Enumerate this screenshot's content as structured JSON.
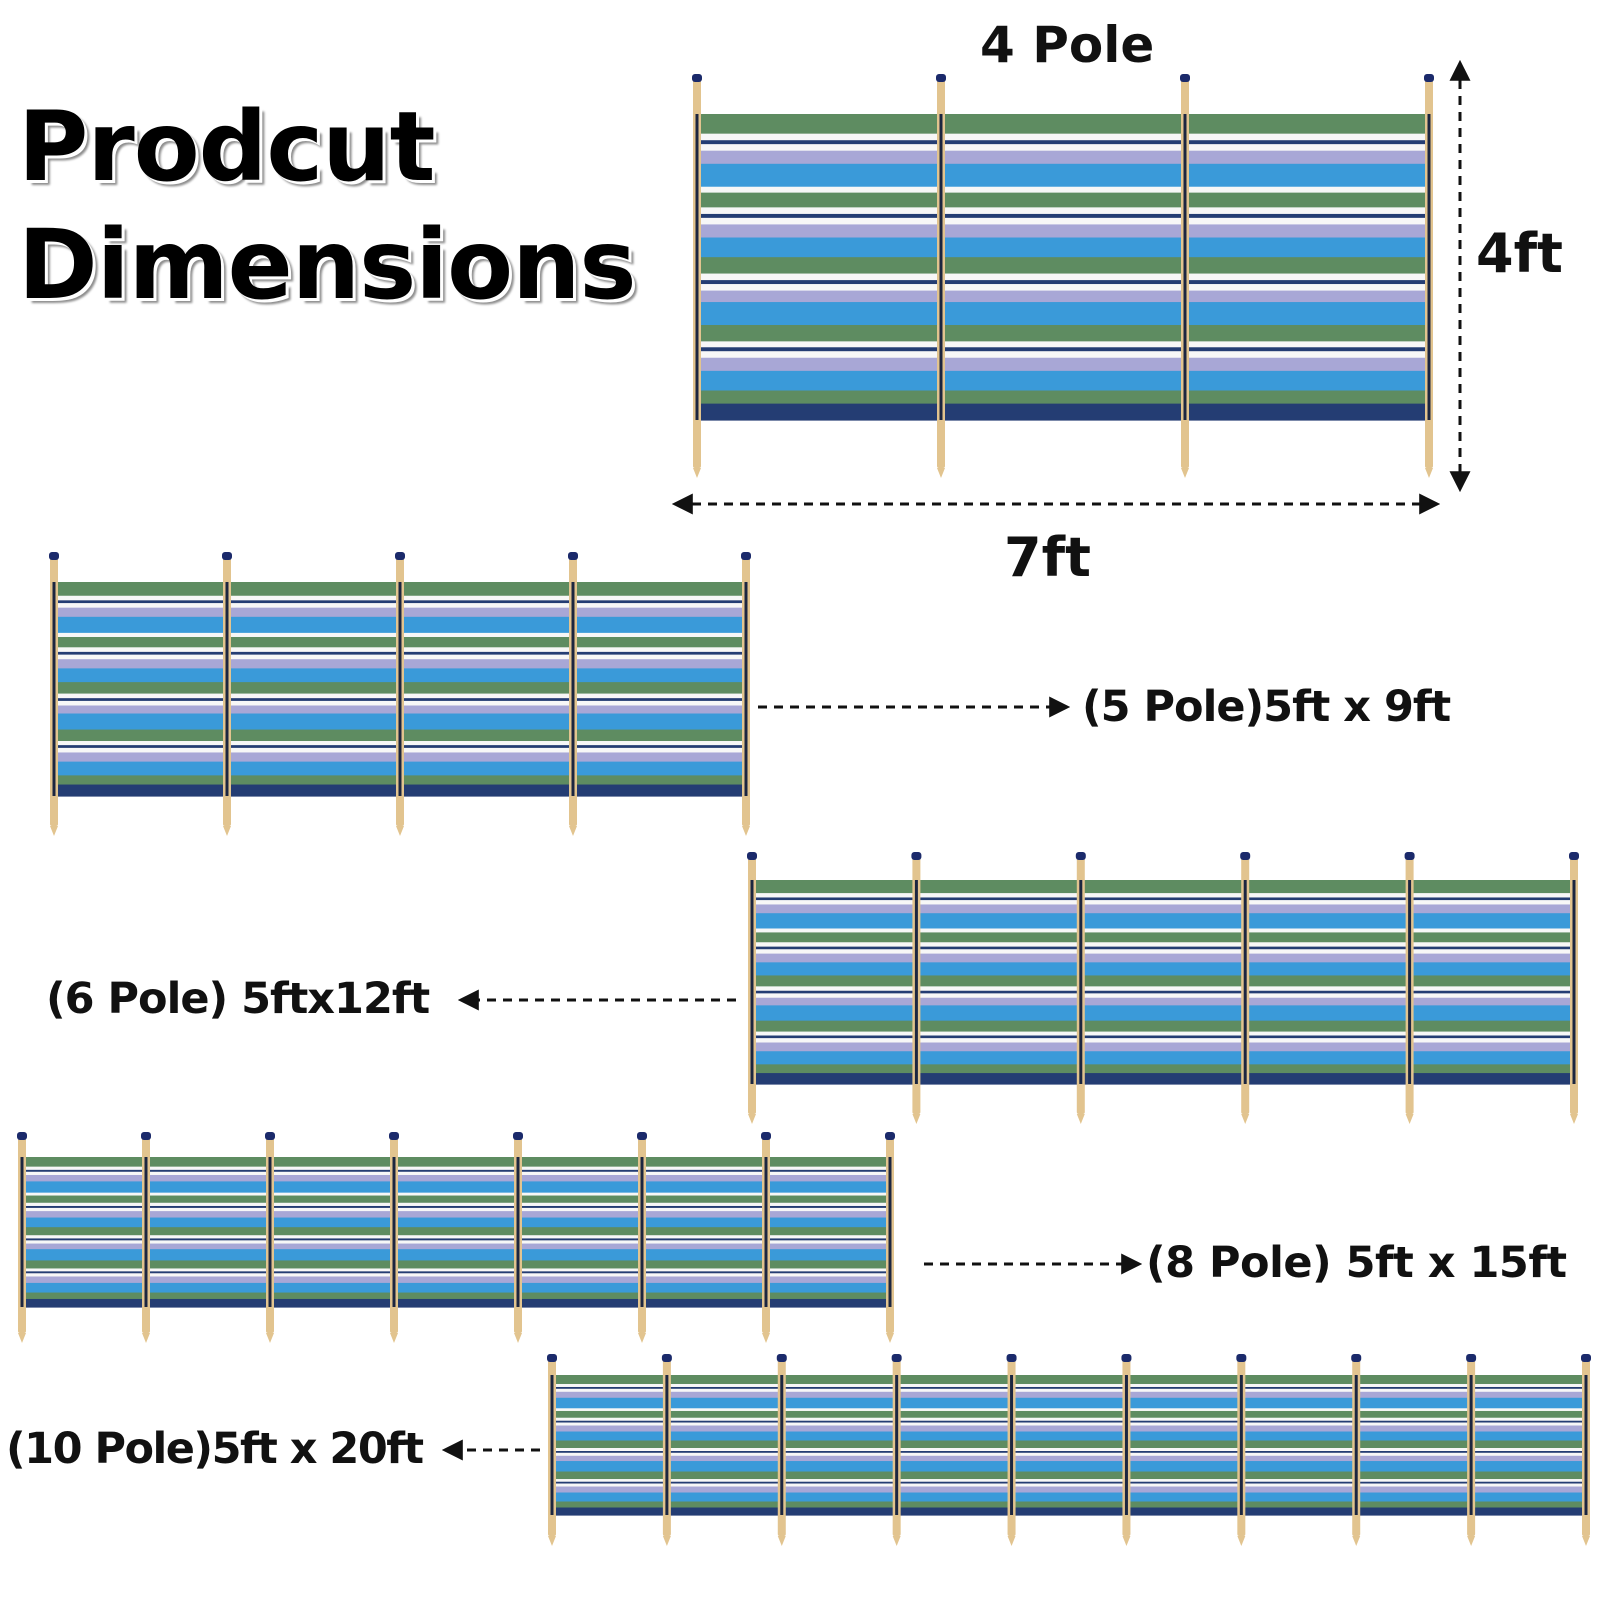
{
  "title": {
    "line1": "Prodcut",
    "line2": "Dimensions"
  },
  "main_product": {
    "pole_label": "4 Pole",
    "height_label": "4ft",
    "width_label": "7ft",
    "poles": 4
  },
  "variants": [
    {
      "label": "(5 Pole)5ft x 9ft",
      "poles": 5
    },
    {
      "label": "(6 Pole) 5ftx12ft",
      "poles": 6
    },
    {
      "label": "(8 Pole) 5ft x 15ft",
      "poles": 8
    },
    {
      "label": "(10 Pole)5ft x 20ft",
      "poles": 10
    }
  ],
  "colors": {
    "pole": "#e2c48f",
    "pole_cap": "#1b2a6b",
    "green": "#5e8c61",
    "blue": "#3a9ad9",
    "lavender": "#a8a7d6",
    "navy": "#243d73",
    "white": "#f7f7f7"
  }
}
